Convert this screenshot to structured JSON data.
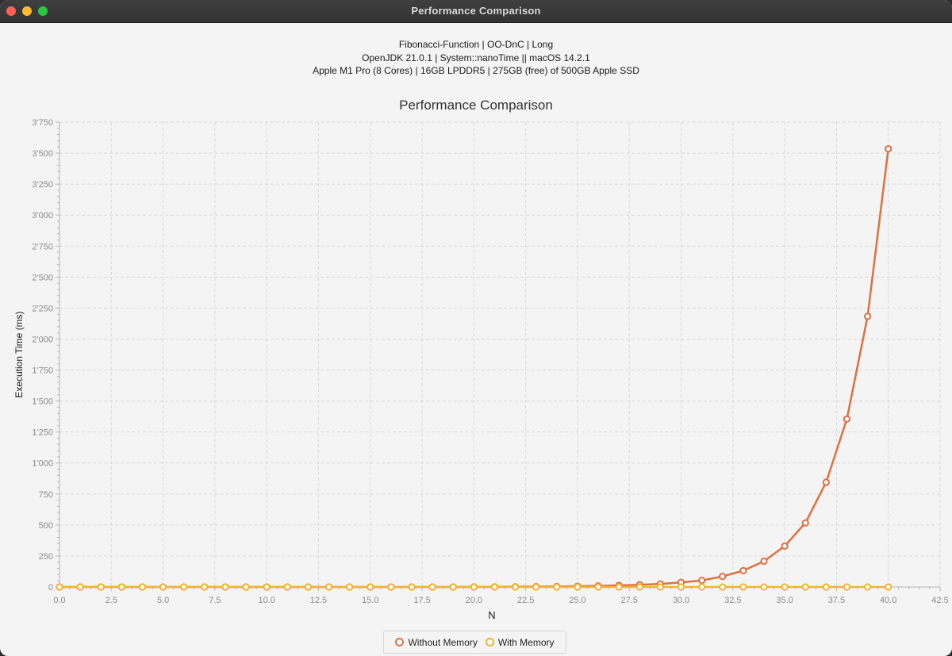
{
  "window": {
    "title": "Performance Comparison"
  },
  "subtitles": [
    "Fibonacci-Function | OO-DnC | Long",
    "OpenJDK 21.0.1 | System::nanoTime || macOS 14.2.1",
    "Apple M1 Pro (8 Cores) | 16GB LPDDR5 | 275GB (free) of 500GB Apple SSD"
  ],
  "chart_data": {
    "type": "line",
    "title": "Performance Comparison",
    "xlabel": "N",
    "ylabel": "Execution Time (ms)",
    "xlim": [
      0,
      42.5
    ],
    "ylim": [
      0,
      3750
    ],
    "x_ticks": [
      "0.0",
      "2.5",
      "5.0",
      "7.5",
      "10.0",
      "12.5",
      "15.0",
      "17.5",
      "20.0",
      "22.5",
      "25.0",
      "27.5",
      "30.0",
      "32.5",
      "35.0",
      "37.5",
      "40.0",
      "42.5"
    ],
    "y_ticks": [
      "0",
      "250",
      "500",
      "750",
      "1'000",
      "1'250",
      "1'500",
      "1'750",
      "2'000",
      "2'250",
      "2'500",
      "2'750",
      "3'000",
      "3'250",
      "3'500",
      "3'750"
    ],
    "grid": true,
    "legend_position": "bottom",
    "x": [
      0,
      1,
      2,
      3,
      4,
      5,
      6,
      7,
      8,
      9,
      10,
      11,
      12,
      13,
      14,
      15,
      16,
      17,
      18,
      19,
      20,
      21,
      22,
      23,
      24,
      25,
      26,
      27,
      28,
      29,
      30,
      31,
      32,
      33,
      34,
      35,
      36,
      37,
      38,
      39,
      40
    ],
    "series": [
      {
        "name": "Without Memory",
        "color": "#e0703f",
        "values": [
          0,
          0,
          0,
          0,
          0,
          0,
          0,
          0,
          0,
          0,
          0,
          0,
          0,
          0,
          0,
          0,
          0,
          0,
          0,
          0,
          1,
          1,
          2,
          3,
          4,
          6,
          9,
          13,
          18,
          25,
          37,
          53,
          85,
          132,
          208,
          330,
          517,
          845,
          1355,
          2183,
          3535
        ]
      },
      {
        "name": "With Memory",
        "color": "#f0b23a",
        "values": [
          0,
          0,
          0,
          0,
          0,
          0,
          0,
          0,
          0,
          0,
          0,
          0,
          0,
          0,
          0,
          0,
          0,
          0,
          0,
          0,
          0,
          0,
          0,
          0,
          0,
          0,
          0,
          0,
          0,
          0,
          0,
          0,
          0,
          0,
          0,
          0,
          0,
          0,
          0,
          0,
          0
        ]
      }
    ]
  }
}
